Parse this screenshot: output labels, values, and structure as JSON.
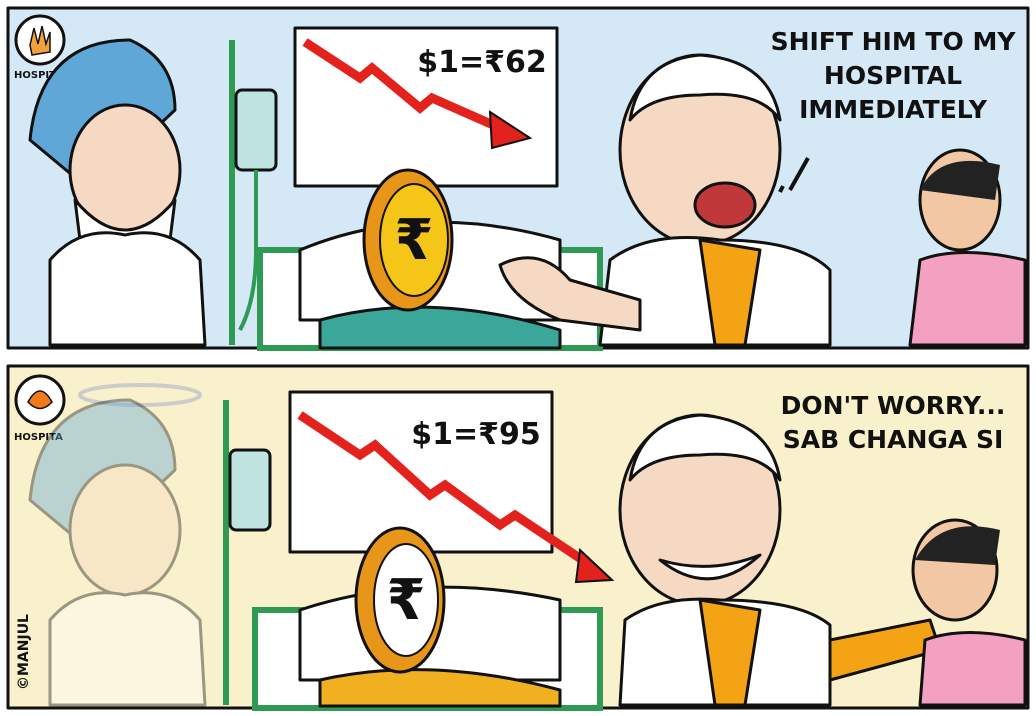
{
  "panels": [
    {
      "logo_label": "HOSPITA",
      "board_text": "$1=₹62",
      "coin_symbol": "₹",
      "speech": [
        "SHIFT HIM TO MY",
        "HOSPITAL",
        "IMMEDIATELY"
      ]
    },
    {
      "logo_label": "HOSPITA",
      "board_text": "$1=₹95",
      "coin_symbol": "₹",
      "speech": [
        "DON'T WORRY...",
        "SAB CHANGA SI"
      ]
    }
  ],
  "credit": "©MANJUL"
}
